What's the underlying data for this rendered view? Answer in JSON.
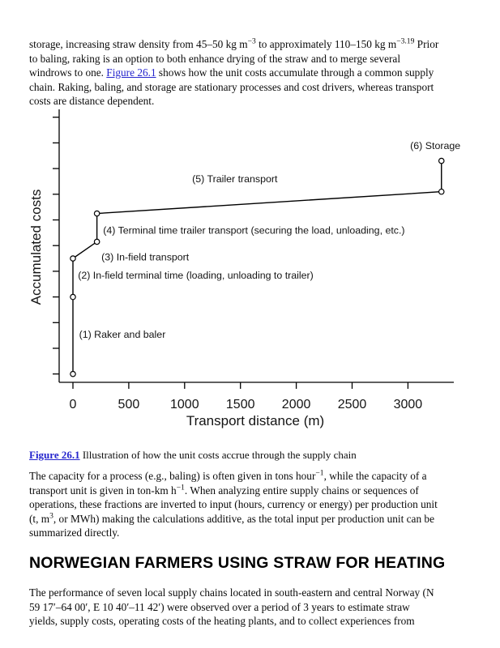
{
  "page": {
    "background": "#ffffff",
    "text_color": "#0a0a0a",
    "link_color": "#2424cd"
  },
  "heading": {
    "text": "NORWEGIAN FARMERS USING STRAW FOR HEATING"
  },
  "paragraphs": {
    "p1": {
      "runs": [
        {
          "t": "storage, increasing straw density from 45–50 kg m"
        },
        {
          "t": "−3",
          "s": "sup"
        },
        {
          "t": " to approximately 110–150 kg m"
        },
        {
          "t": "−3.19",
          "s": "sup"
        },
        {
          "t": " Prior"
        },
        {
          "s": "br"
        },
        {
          "t": "to baling, raking is an option to both enhance drying of the straw and to merge several"
        },
        {
          "s": "br"
        },
        {
          "t": "windrows to one. "
        },
        {
          "t": "Figure 26.1",
          "s": "link"
        },
        {
          "t": " shows how the unit costs accumulate through a common supply"
        },
        {
          "s": "br"
        },
        {
          "t": "chain. Raking, baling, and storage are stationary processes and cost drivers, whereas transport"
        },
        {
          "s": "br"
        },
        {
          "t": "costs are distance dependent."
        }
      ]
    },
    "caption": {
      "runs": [
        {
          "t": "Figure 26.1",
          "s": "boldlink"
        },
        {
          "t": " Illustration of how the unit costs accrue through the supply chain"
        }
      ]
    },
    "p2": {
      "runs": [
        {
          "t": "The capacity for a process (e.g., baling) is often given in tons hour"
        },
        {
          "t": "−1",
          "s": "sup"
        },
        {
          "t": ", while the capacity of a"
        },
        {
          "s": "br"
        },
        {
          "t": "transport unit is given in ton-km h"
        },
        {
          "t": "−1",
          "s": "sup"
        },
        {
          "t": ". When analyzing entire supply chains or sequences of"
        },
        {
          "s": "br"
        },
        {
          "t": "operations, these fractions are inverted to input (hours, currency or energy) per production unit"
        },
        {
          "s": "br"
        },
        {
          "t": "(t, m"
        },
        {
          "t": "3",
          "s": "sup"
        },
        {
          "t": ", or MWh) making the calculations additive, as the total input per production unit can be"
        },
        {
          "s": "br"
        },
        {
          "t": "summarized directly."
        }
      ]
    },
    "p3": {
      "runs": [
        {
          "t": "The performance of seven local supply chains located in south-eastern and central Norway (N"
        },
        {
          "s": "br"
        },
        {
          "t": "59 17′–64 00′, E 10 40′–11 42′) were observed over a period of 3 years to estimate straw"
        },
        {
          "s": "br"
        },
        {
          "t": "yields, supply costs, operating costs of the heating plants, and to collect experiences from"
        }
      ]
    }
  },
  "chart_data": {
    "type": "line",
    "title": "",
    "xlabel": "Transport distance (m)",
    "ylabel": "Accumulated costs",
    "xlim": [
      0,
      3420
    ],
    "ylim": [
      0,
      10.5
    ],
    "xticks": [
      0,
      500,
      1000,
      1500,
      2000,
      2500,
      3000
    ],
    "yticks": [
      0,
      1,
      2,
      3,
      4,
      5,
      6,
      7,
      8,
      9,
      10
    ],
    "ytick_labels_shown": false,
    "grid": false,
    "legend": "none",
    "line_color": "#000000",
    "marker": "open-circle",
    "series": [
      {
        "name": "accumulated-costs",
        "points": [
          [
            0,
            0
          ],
          [
            0,
            3.0
          ],
          [
            0,
            4.5
          ],
          [
            215,
            5.15
          ],
          [
            215,
            6.25
          ],
          [
            3300,
            7.1
          ],
          [
            3300,
            8.3
          ]
        ]
      }
    ],
    "annotations": [
      {
        "label": "(1) Raker and baler",
        "x": 55,
        "y": 1.55,
        "anchor": "start"
      },
      {
        "label": "(2) In-field terminal time (loading, unloading to trailer)",
        "x": 45,
        "y": 3.85,
        "anchor": "start"
      },
      {
        "label": "(3) In-field transport",
        "x": 255,
        "y": 4.55,
        "anchor": "start"
      },
      {
        "label": "(4) Terminal time trailer transport (securing the load, unloading, etc.)",
        "x": 270,
        "y": 5.6,
        "anchor": "start"
      },
      {
        "label": "(5) Trailer transport",
        "x": 1450,
        "y": 7.6,
        "anchor": "middle"
      },
      {
        "label": "(6) Storage",
        "x": 3245,
        "y": 8.9,
        "anchor": "middle"
      }
    ]
  }
}
